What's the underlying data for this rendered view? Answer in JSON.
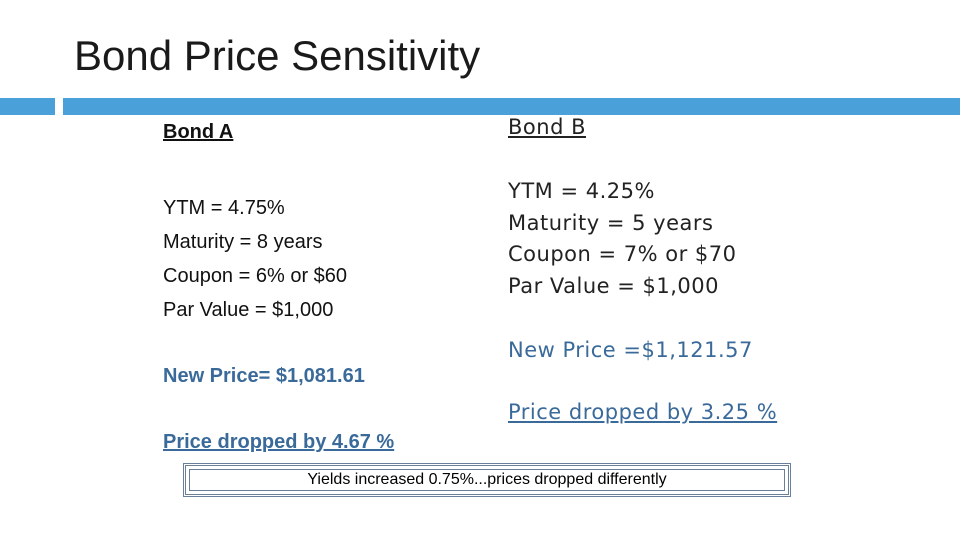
{
  "slide": {
    "title": "Bond Price Sensitivity"
  },
  "bond_a": {
    "heading": "Bond A",
    "lines": [
      "YTM = 4.75%",
      "Maturity = 8 years",
      "Coupon = 6% or $60",
      "Par Value = $1,000"
    ],
    "new_price": "New Price= $1,081.61",
    "price_drop": "Price dropped by 4.67 %"
  },
  "bond_b": {
    "heading": "Bond B",
    "lines": [
      "YTM = 4.25%",
      "Maturity = 5 years",
      "Coupon = 7% or $70",
      "Par Value = $1,000"
    ],
    "new_price": "New Price =$1,121.57",
    "price_drop": "Price dropped by 3.25 %"
  },
  "note": {
    "text": "Yields increased 0.75%...prices dropped differently"
  },
  "colors": {
    "accent": "#4aa0d8",
    "highlight_text": "#3a6a9a"
  }
}
